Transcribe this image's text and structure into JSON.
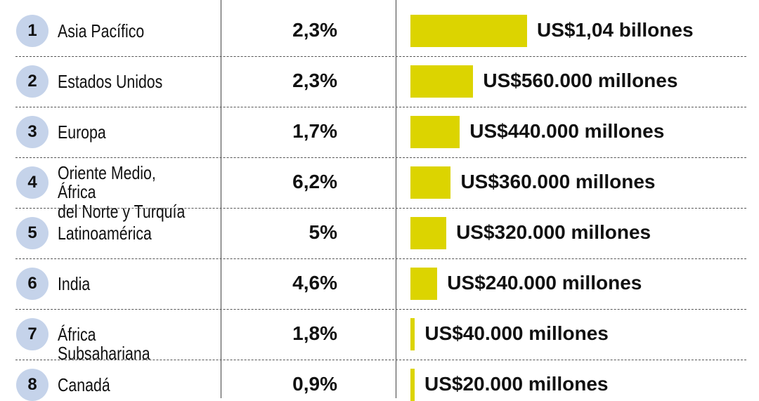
{
  "chart_data": {
    "type": "table",
    "bar_color": "#dcd400",
    "badge_color": "#c5d3ea",
    "rows": [
      {
        "rank": "1",
        "region": "Asia Pacífico",
        "pct": "2,3%",
        "value": 1040000,
        "amount_label": "US$1,04 billones"
      },
      {
        "rank": "2",
        "region": "Estados Unidos",
        "pct": "2,3%",
        "value": 560000,
        "amount_label": "US$560.000 millones"
      },
      {
        "rank": "3",
        "region": "Europa",
        "pct": "1,7%",
        "value": 440000,
        "amount_label": "US$440.000 millones"
      },
      {
        "rank": "4",
        "region": "Oriente Medio, África\ndel Norte y Turquía",
        "pct": "6,2%",
        "value": 360000,
        "amount_label": "US$360.000 millones"
      },
      {
        "rank": "5",
        "region": "Latinoamérica",
        "pct": "5%",
        "value": 320000,
        "amount_label": "US$320.000 millones"
      },
      {
        "rank": "6",
        "region": "India",
        "pct": "4,6%",
        "value": 240000,
        "amount_label": "US$240.000 millones"
      },
      {
        "rank": "7",
        "region": "África Subsahariana",
        "pct": "1,8%",
        "value": 40000,
        "amount_label": "US$40.000 millones"
      },
      {
        "rank": "8",
        "region": "Canadá",
        "pct": "0,9%",
        "value": 20000,
        "amount_label": "US$20.000 millones"
      }
    ]
  }
}
